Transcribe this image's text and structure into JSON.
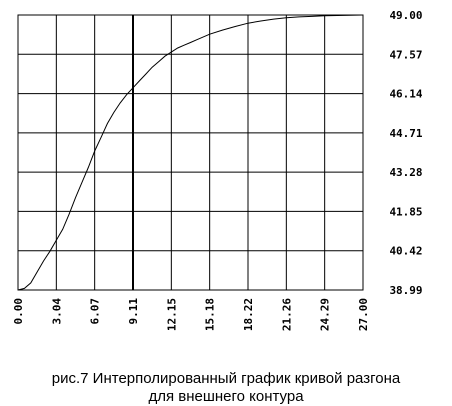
{
  "chart_data": {
    "type": "line",
    "title": "",
    "xlabel": "",
    "ylabel": "",
    "xlim": [
      0,
      27
    ],
    "ylim": [
      38.99,
      49.0
    ],
    "grid": true,
    "x_ticks": [
      "0.00",
      "3.04",
      "6.07",
      "9.11",
      "12.15",
      "15.18",
      "18.22",
      "21.26",
      "24.29",
      "27.00"
    ],
    "y_ticks": [
      "38.99",
      "40.42",
      "41.85",
      "43.28",
      "44.71",
      "46.14",
      "47.57",
      "49.00"
    ],
    "highlight_x": 9.11,
    "series": [
      {
        "x": [
          0.0,
          0.5,
          1.0,
          1.5,
          2.0,
          2.5,
          3.0,
          3.5,
          4.0,
          4.5,
          5.0,
          5.5,
          6.0,
          6.5,
          7.0,
          7.5,
          8.0,
          8.5,
          9.0,
          9.5,
          10.0,
          10.5,
          11.0,
          11.5,
          12.0,
          12.5,
          13.0,
          13.5,
          14.0,
          15.0,
          16.0,
          17.0,
          18.0,
          19.0,
          20.0,
          21.0,
          22.0,
          23.0,
          24.0,
          25.0,
          26.0,
          27.0
        ],
        "values": [
          38.99,
          39.05,
          39.25,
          39.65,
          40.05,
          40.4,
          40.8,
          41.2,
          41.75,
          42.35,
          42.9,
          43.45,
          44.05,
          44.55,
          45.05,
          45.45,
          45.8,
          46.1,
          46.35,
          46.6,
          46.85,
          47.1,
          47.3,
          47.5,
          47.65,
          47.8,
          47.9,
          48.0,
          48.1,
          48.3,
          48.45,
          48.58,
          48.7,
          48.78,
          48.85,
          48.9,
          48.93,
          48.95,
          48.97,
          48.98,
          48.99,
          49.0
        ]
      }
    ]
  },
  "caption": {
    "line1": "рис.7  Интерполированный график кривой разгона",
    "line2": "для внешнего контура"
  }
}
